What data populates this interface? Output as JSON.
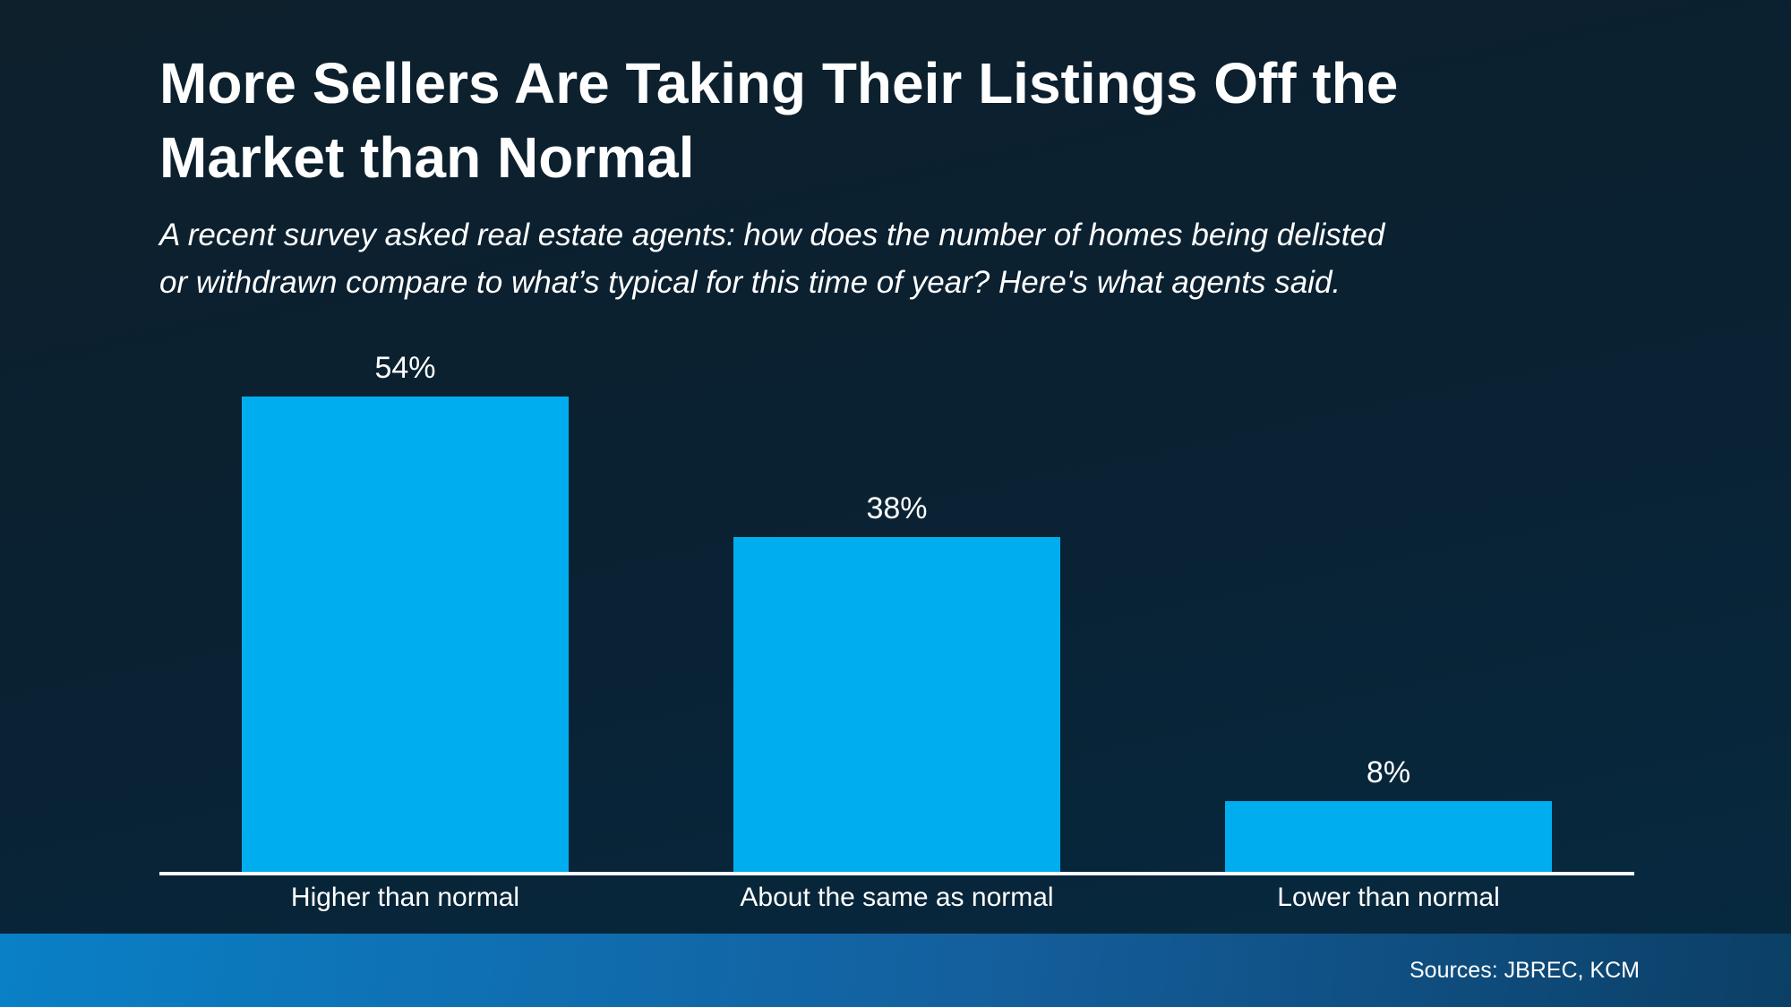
{
  "header": {
    "title_lines": [
      "More Sellers Are Taking Their Listings Off the",
      "Market than Normal"
    ],
    "subtitle_lines": [
      "A recent survey asked real estate agents: how does the number of homes being delisted",
      "or withdrawn compare to what’s typical for this time of year? Here's what agents said."
    ]
  },
  "chart_data": {
    "type": "bar",
    "title": "More Sellers Are Taking Their Listings Off the Market than Normal",
    "subtitle": "A recent survey asked real estate agents: how does the number of homes being delisted or withdrawn compare to what’s typical for this time of year? Here's what agents said.",
    "categories": [
      "Higher than normal",
      "About the same as normal",
      "Lower than normal"
    ],
    "values": [
      54,
      38,
      8
    ],
    "value_labels": [
      "54%",
      "38%",
      "8%"
    ],
    "ylim": [
      0,
      60
    ],
    "y_axis_visible": false,
    "gridlines": false,
    "legend_position": "none",
    "baseline_color": "#FFFFFF",
    "bar_color": "#00AEEF"
  },
  "footer": {
    "source_label": "Sources: JBREC, KCM"
  },
  "colors": {
    "background_top": "#0D202C",
    "background_bottom": "#062A41",
    "bar_fill": "#00AEEF",
    "footer_gradient_left": "#0A80C6",
    "footer_gradient_right": "#0B3F66",
    "text": "#FFFFFF"
  }
}
